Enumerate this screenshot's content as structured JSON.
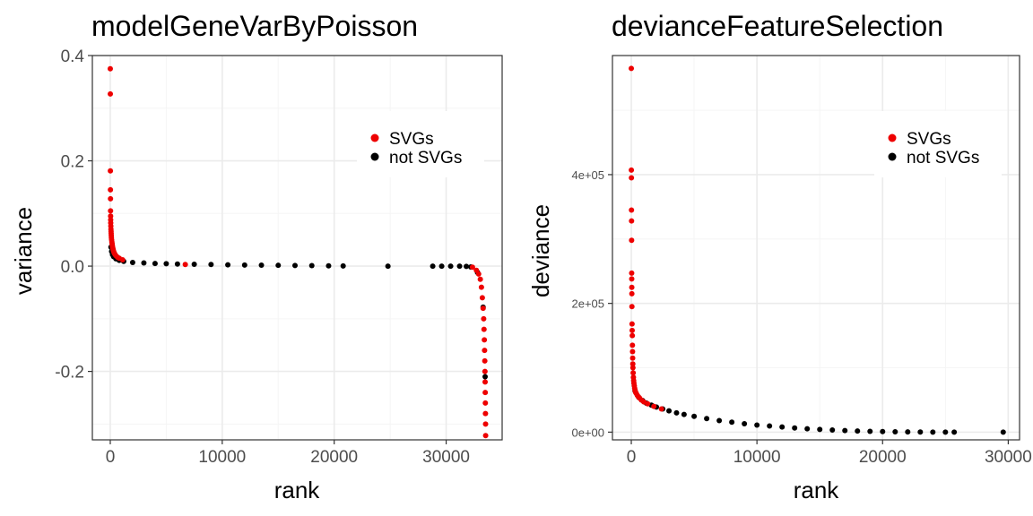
{
  "colors": {
    "svg": "#ee0000",
    "not_svg": "#000000",
    "panel_border": "#333333",
    "grid_major": "#ebebeb",
    "grid_minor": "#f5f5f5",
    "tick_text": "#4d4d4d"
  },
  "chart_data": [
    {
      "type": "scatter",
      "title": "modelGeneVarByPoisson",
      "xlabel": "rank",
      "ylabel": "variance",
      "xlim": [
        -1600,
        35000
      ],
      "ylim": [
        -0.33,
        0.4
      ],
      "xticks": [
        0,
        10000,
        20000,
        30000
      ],
      "xtick_labels": [
        "0",
        "10000",
        "20000",
        "30000"
      ],
      "xminor": [
        5000,
        15000,
        25000
      ],
      "yticks": [
        -0.2,
        0.0,
        0.2,
        0.4
      ],
      "ytick_labels": [
        "-0.2",
        "0.0",
        "0.2",
        "0.4"
      ],
      "yminor": [
        -0.3,
        -0.1,
        0.1,
        0.3
      ],
      "legend": {
        "position": "top-right",
        "entries": [
          "SVGs",
          "not SVGs"
        ]
      },
      "series": [
        {
          "name": "SVGs",
          "color_key": "svg",
          "points": [
            [
              0,
              0.375
            ],
            [
              5,
              0.327
            ],
            [
              10,
              0.181
            ],
            [
              15,
              0.145
            ],
            [
              20,
              0.128
            ],
            [
              25,
              0.105
            ],
            [
              30,
              0.095
            ],
            [
              35,
              0.088
            ],
            [
              40,
              0.082
            ],
            [
              50,
              0.076
            ],
            [
              60,
              0.07
            ],
            [
              70,
              0.066
            ],
            [
              80,
              0.062
            ],
            [
              90,
              0.058
            ],
            [
              100,
              0.054
            ],
            [
              120,
              0.05
            ],
            [
              140,
              0.046
            ],
            [
              160,
              0.043
            ],
            [
              180,
              0.04
            ],
            [
              200,
              0.037
            ],
            [
              230,
              0.034
            ],
            [
              260,
              0.031
            ],
            [
              300,
              0.028
            ],
            [
              350,
              0.025
            ],
            [
              400,
              0.023
            ],
            [
              500,
              0.02
            ],
            [
              650,
              0.017
            ],
            [
              800,
              0.015
            ],
            [
              1100,
              0.012
            ],
            [
              6700,
              0.003
            ],
            [
              32350,
              -0.002
            ],
            [
              32700,
              -0.008
            ],
            [
              32900,
              -0.015
            ],
            [
              33050,
              -0.025
            ],
            [
              33150,
              -0.04
            ],
            [
              33230,
              -0.06
            ],
            [
              33300,
              -0.08
            ],
            [
              33350,
              -0.1
            ],
            [
              33380,
              -0.12
            ],
            [
              33410,
              -0.14
            ],
            [
              33430,
              -0.16
            ],
            [
              33450,
              -0.18
            ],
            [
              33465,
              -0.2
            ],
            [
              33480,
              -0.22
            ],
            [
              33490,
              -0.24
            ],
            [
              33500,
              -0.26
            ],
            [
              33510,
              -0.28
            ],
            [
              33520,
              -0.3
            ],
            [
              33525,
              -0.322
            ]
          ]
        },
        {
          "name": "not SVGs",
          "color_key": "not_svg",
          "points": [
            [
              60,
              0.036
            ],
            [
              120,
              0.028
            ],
            [
              200,
              0.022
            ],
            [
              300,
              0.018
            ],
            [
              500,
              0.014
            ],
            [
              800,
              0.011
            ],
            [
              1200,
              0.009
            ],
            [
              2000,
              0.007
            ],
            [
              3000,
              0.006
            ],
            [
              4000,
              0.005
            ],
            [
              5000,
              0.0045
            ],
            [
              6000,
              0.004
            ],
            [
              7500,
              0.0035
            ],
            [
              9000,
              0.003
            ],
            [
              10500,
              0.0025
            ],
            [
              12000,
              0.002
            ],
            [
              13500,
              0.0018
            ],
            [
              15000,
              0.0015
            ],
            [
              16500,
              0.0012
            ],
            [
              18000,
              0.001
            ],
            [
              19500,
              0.0006
            ],
            [
              20800,
              0.0003
            ],
            [
              24800,
              0.0
            ],
            [
              28800,
              0.0
            ],
            [
              29600,
              0.0
            ],
            [
              30400,
              0.0
            ],
            [
              31200,
              0.0
            ],
            [
              31800,
              -0.0005
            ],
            [
              32200,
              -0.0015
            ],
            [
              32800,
              -0.012
            ],
            [
              33300,
              -0.078
            ],
            [
              33480,
              -0.21
            ]
          ]
        }
      ]
    },
    {
      "type": "scatter",
      "title": "devianceFeatureSelection",
      "xlabel": "rank",
      "ylabel": "deviance",
      "xlim": [
        -1500,
        30900
      ],
      "ylim": [
        -12000,
        585000
      ],
      "xticks": [
        0,
        10000,
        20000,
        30000
      ],
      "xtick_labels": [
        "0",
        "10000",
        "20000",
        "30000"
      ],
      "xminor": [
        5000,
        15000,
        25000
      ],
      "yticks": [
        0,
        200000,
        400000
      ],
      "ytick_labels": [
        "0e+00",
        "2e+05",
        "4e+05"
      ],
      "yminor": [
        100000,
        300000,
        500000
      ],
      "legend": {
        "position": "top-right",
        "entries": [
          "SVGs",
          "not SVGs"
        ]
      },
      "series": [
        {
          "name": "SVGs",
          "color_key": "svg",
          "points": [
            [
              0,
              565000
            ],
            [
              5,
              407000
            ],
            [
              10,
              395000
            ],
            [
              15,
              345000
            ],
            [
              20,
              328000
            ],
            [
              25,
              298000
            ],
            [
              30,
              247000
            ],
            [
              35,
              238000
            ],
            [
              40,
              225000
            ],
            [
              45,
              215000
            ],
            [
              50,
              195000
            ],
            [
              60,
              168000
            ],
            [
              70,
              158000
            ],
            [
              80,
              150000
            ],
            [
              90,
              135000
            ],
            [
              100,
              125000
            ],
            [
              110,
              115000
            ],
            [
              120,
              106000
            ],
            [
              130,
              100000
            ],
            [
              150,
              92000
            ],
            [
              170,
              85000
            ],
            [
              190,
              80000
            ],
            [
              210,
              76000
            ],
            [
              240,
              72000
            ],
            [
              270,
              68000
            ],
            [
              300,
              65000
            ],
            [
              340,
              62000
            ],
            [
              400,
              60000
            ],
            [
              480,
              57000
            ],
            [
              560,
              55000
            ],
            [
              650,
              53000
            ],
            [
              800,
              50000
            ],
            [
              1000,
              47000
            ],
            [
              1300,
              44000
            ],
            [
              1800,
              40000
            ],
            [
              2400,
              36000
            ]
          ]
        },
        {
          "name": "not SVGs",
          "color_key": "not_svg",
          "points": [
            [
              300,
              64000
            ],
            [
              600,
              54000
            ],
            [
              900,
              49000
            ],
            [
              1200,
              45000
            ],
            [
              1600,
              42000
            ],
            [
              2000,
              39000
            ],
            [
              2500,
              36000
            ],
            [
              3000,
              33000
            ],
            [
              3600,
              30000
            ],
            [
              4200,
              27500
            ],
            [
              5000,
              24500
            ],
            [
              6000,
              21000
            ],
            [
              7000,
              18000
            ],
            [
              8000,
              15500
            ],
            [
              9000,
              13000
            ],
            [
              10000,
              11000
            ],
            [
              11000,
              9500
            ],
            [
              12000,
              8000
            ],
            [
              13000,
              6500
            ],
            [
              14000,
              5200
            ],
            [
              15000,
              4200
            ],
            [
              16000,
              3300
            ],
            [
              17000,
              2500
            ],
            [
              18000,
              1800
            ],
            [
              19000,
              1200
            ],
            [
              20000,
              800
            ],
            [
              21000,
              500
            ],
            [
              22000,
              300
            ],
            [
              23000,
              150
            ],
            [
              24000,
              80
            ],
            [
              25000,
              30
            ],
            [
              25700,
              0
            ],
            [
              29600,
              0
            ]
          ]
        }
      ]
    }
  ]
}
